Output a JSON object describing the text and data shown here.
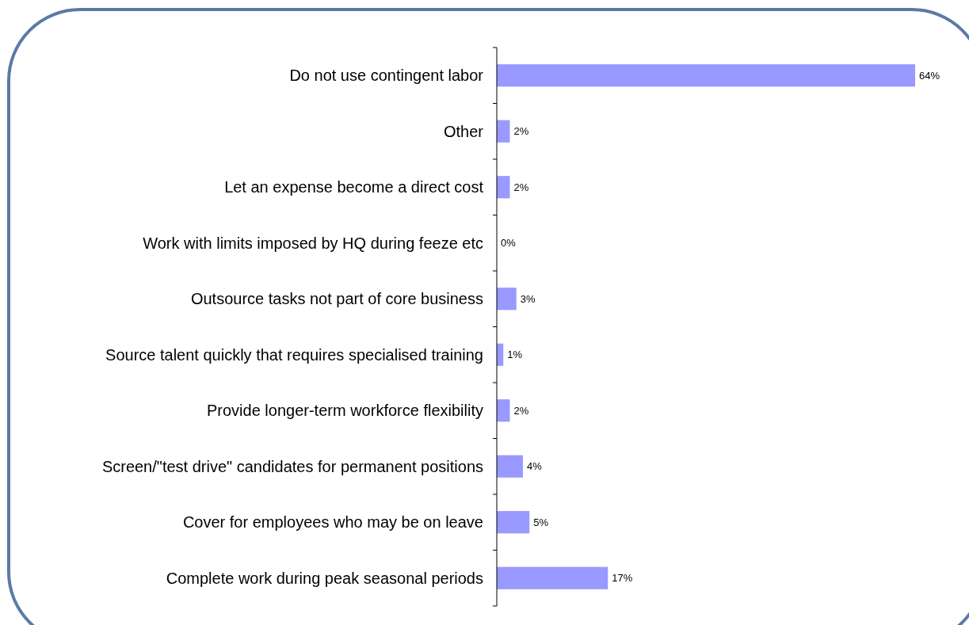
{
  "chart_data": {
    "type": "bar",
    "orientation": "horizontal",
    "categories": [
      "Do not use contingent labor",
      "Other",
      "Let an expense become a direct cost",
      "Work with limits imposed by HQ during feeze etc",
      "Outsource tasks not part of core business",
      "Source talent quickly that requires specialised training",
      "Provide longer-term workforce flexibility",
      "Screen/\"test drive\" candidates for permanent positions",
      "Cover for employees who may be on leave",
      "Complete work during peak seasonal periods"
    ],
    "values": [
      64,
      2,
      2,
      0,
      3,
      1,
      2,
      4,
      5,
      17
    ],
    "value_labels": [
      "64%",
      "2%",
      "2%",
      "0%",
      "3%",
      "1%",
      "2%",
      "4%",
      "5%",
      "17%"
    ],
    "color": "#9999ff"
  }
}
